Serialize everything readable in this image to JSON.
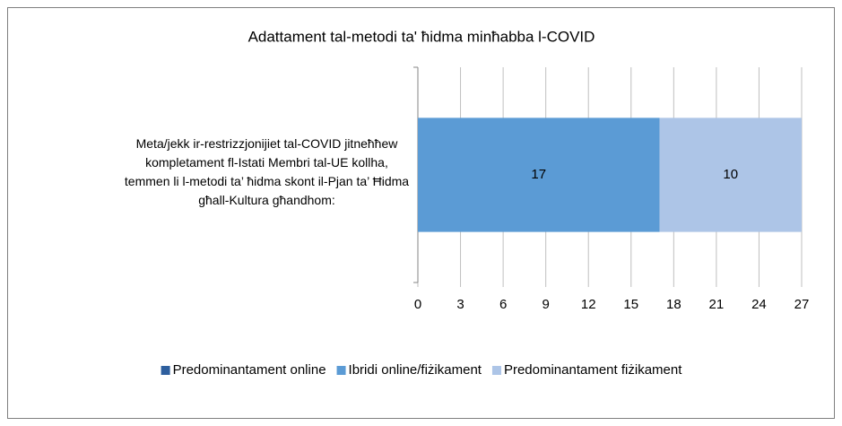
{
  "chart_data": {
    "type": "stacked-bar-horizontal",
    "title": "Adattament tal-metodi ta' ħidma minħabba l-COVID",
    "categories": [
      "Meta/jekk ir-restrizzjonijiet tal-COVID jitneħħew kompletament fl-Istati Membri tal-UE kollha, temmen li l-metodi ta’ ħidma skont il-Pjan ta’ Ħidma għall-Kultura għandhom:"
    ],
    "series": [
      {
        "name": "Predominantament online",
        "color": "#2e5f9e",
        "values": [
          0
        ]
      },
      {
        "name": "Ibridi online/fiżikament",
        "color": "#5b9bd5",
        "values": [
          17
        ]
      },
      {
        "name": "Predominantament fiżikament",
        "color": "#adc5e7",
        "values": [
          10
        ]
      }
    ],
    "xlim": [
      0,
      27
    ],
    "xticks": [
      0,
      3,
      6,
      9,
      12,
      15,
      18,
      21,
      24,
      27
    ],
    "grid": true,
    "legend": "bottom"
  }
}
